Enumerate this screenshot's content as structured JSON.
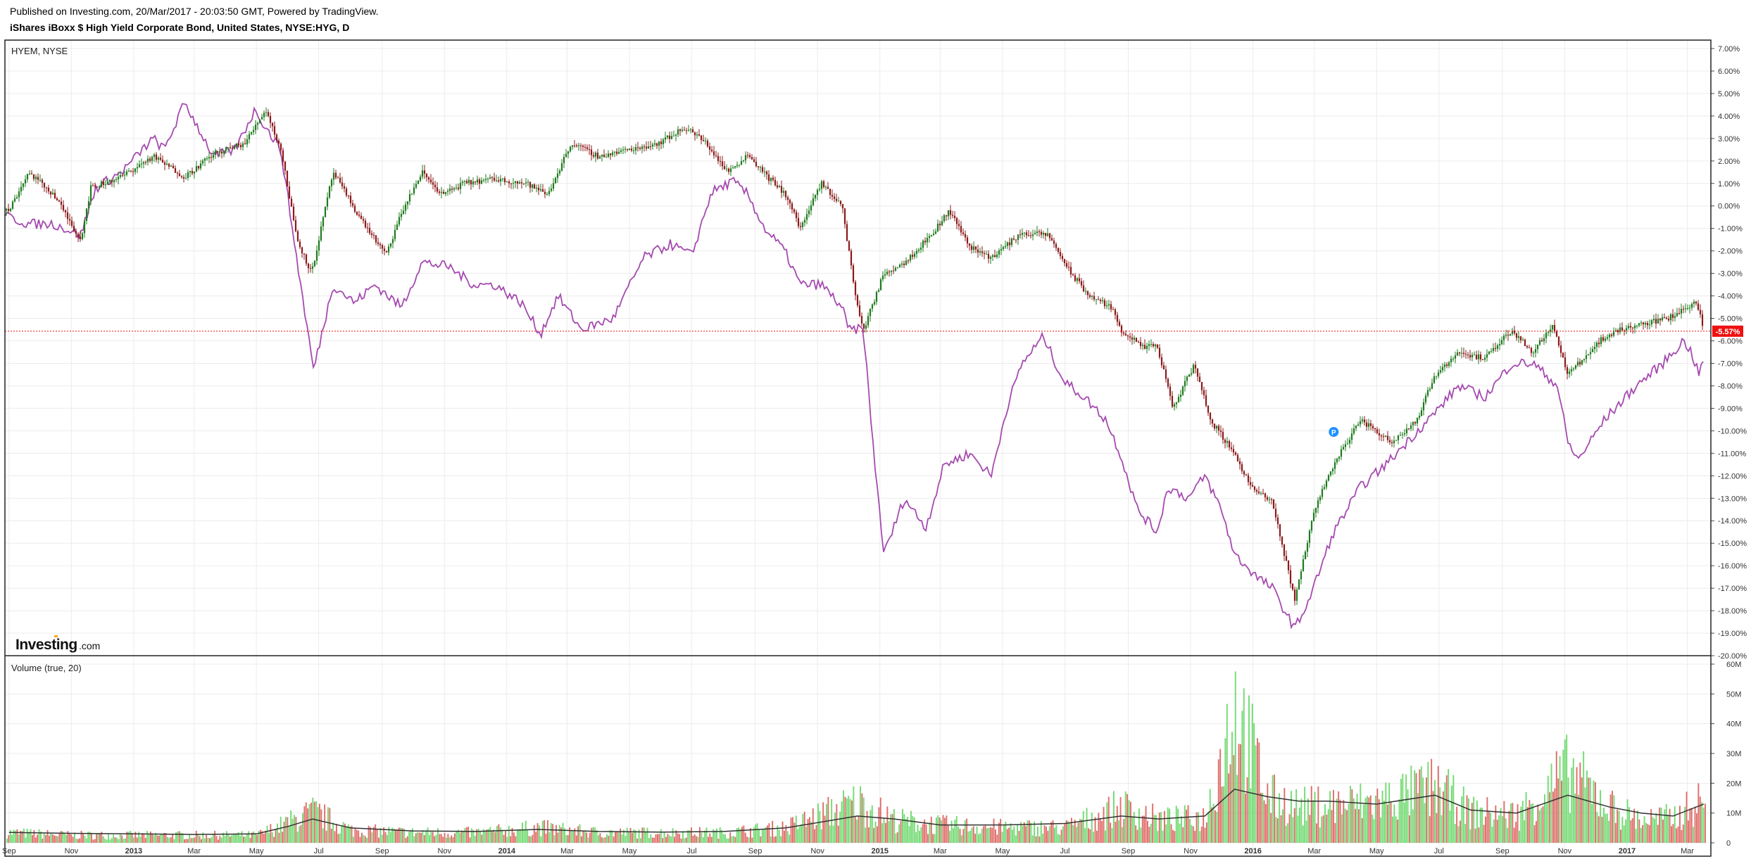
{
  "header": {
    "published": "Published on Investing.com, 20/Mar/2017 - 20:03:50 GMT, Powered by TradingView.",
    "title": "iShares iBoxx $ High Yield Corporate Bond, United States, NYSE:HYG, D"
  },
  "chart_data": {
    "type": "line",
    "main_pane": {
      "legend": "HYEM, NYSE",
      "y_unit": "%",
      "ylim": [
        -20,
        7
      ],
      "y_ticks": [
        "7.00%",
        "6.00%",
        "5.00%",
        "4.00%",
        "3.00%",
        "2.00%",
        "1.00%",
        "0.00%",
        "-1.00%",
        "-2.00%",
        "-3.00%",
        "-4.00%",
        "-5.00%",
        "-6.00%",
        "-7.00%",
        "-8.00%",
        "-9.00%",
        "-10.00%",
        "-11.00%",
        "-12.00%",
        "-13.00%",
        "-14.00%",
        "-15.00%",
        "-16.00%",
        "-17.00%",
        "-18.00%",
        "-19.00%",
        "-20.00%"
      ],
      "current_value_label": "-5.57%",
      "current_value": -5.57,
      "marker_label": "P",
      "marker": {
        "x": "2016-03-20",
        "y": -10.05
      },
      "series": [
        {
          "name": "HYG",
          "style": "candlestick",
          "up_color": "#1e7b1e",
          "down_color": "#8b1a1a",
          "x": [
            "2012-09-01",
            "2012-09-20",
            "2012-10-15",
            "2012-11-10",
            "2012-11-20",
            "2012-12-20",
            "2013-01-20",
            "2013-02-20",
            "2013-03-20",
            "2013-04-20",
            "2013-05-10",
            "2013-05-25",
            "2013-06-10",
            "2013-06-24",
            "2013-07-15",
            "2013-08-10",
            "2013-09-05",
            "2013-09-20",
            "2013-10-10",
            "2013-10-30",
            "2013-11-20",
            "2013-12-20",
            "2014-01-20",
            "2014-02-10",
            "2014-03-05",
            "2014-04-01",
            "2014-04-30",
            "2014-05-30",
            "2014-06-25",
            "2014-07-15",
            "2014-08-05",
            "2014-08-25",
            "2014-09-15",
            "2014-10-01",
            "2014-10-15",
            "2014-11-05",
            "2014-11-25",
            "2014-12-10",
            "2014-12-16",
            "2015-01-05",
            "2015-01-25",
            "2015-02-20",
            "2015-03-10",
            "2015-03-30",
            "2015-04-20",
            "2015-05-20",
            "2015-06-15",
            "2015-07-07",
            "2015-07-25",
            "2015-08-15",
            "2015-08-25",
            "2015-09-15",
            "2015-09-29",
            "2015-10-15",
            "2015-11-05",
            "2015-11-20",
            "2015-12-14",
            "2015-12-30",
            "2016-01-20",
            "2016-02-11",
            "2016-03-01",
            "2016-03-20",
            "2016-04-15",
            "2016-05-15",
            "2016-06-10",
            "2016-06-27",
            "2016-07-20",
            "2016-08-15",
            "2016-09-10",
            "2016-09-30",
            "2016-10-20",
            "2016-11-04",
            "2016-11-15",
            "2016-12-05",
            "2016-12-25",
            "2017-01-20",
            "2017-02-10",
            "2017-03-01",
            "2017-03-10",
            "2017-03-17"
          ],
          "y": [
            -0.2,
            1.5,
            0.5,
            -1.5,
            0.8,
            1.3,
            2.2,
            1.3,
            2.3,
            2.8,
            4.3,
            2.5,
            -1.5,
            -3.0,
            1.5,
            -0.5,
            -2.2,
            -0.3,
            1.5,
            0.5,
            1.0,
            1.2,
            1.0,
            0.5,
            2.8,
            2.2,
            2.5,
            2.8,
            3.5,
            2.8,
            1.5,
            2.3,
            1.2,
            0.5,
            -1.0,
            1.0,
            0.0,
            -4.5,
            -5.5,
            -3.0,
            -2.5,
            -1.3,
            -0.2,
            -1.8,
            -2.3,
            -1.2,
            -1.3,
            -3.0,
            -4.0,
            -4.5,
            -5.5,
            -6.3,
            -6.2,
            -9.0,
            -7.0,
            -9.5,
            -11.0,
            -12.5,
            -13.2,
            -17.5,
            -13.5,
            -11.5,
            -9.5,
            -10.5,
            -9.5,
            -7.5,
            -6.5,
            -6.8,
            -5.5,
            -6.5,
            -5.3,
            -7.5,
            -7.0,
            -6.0,
            -5.5,
            -5.2,
            -5.0,
            -4.5,
            -4.2,
            -5.57
          ]
        },
        {
          "name": "HYEM",
          "style": "line",
          "color": "#a54ab0",
          "x": [
            "2012-09-01",
            "2012-09-20",
            "2012-10-15",
            "2012-11-10",
            "2012-11-25",
            "2012-12-20",
            "2013-01-20",
            "2013-01-31",
            "2013-02-20",
            "2013-03-20",
            "2013-04-10",
            "2013-04-30",
            "2013-05-10",
            "2013-05-25",
            "2013-06-10",
            "2013-06-20",
            "2013-06-26",
            "2013-07-15",
            "2013-08-05",
            "2013-08-25",
            "2013-09-20",
            "2013-10-10",
            "2013-11-05",
            "2013-11-30",
            "2013-12-20",
            "2014-01-15",
            "2014-02-03",
            "2014-02-20",
            "2014-03-15",
            "2014-04-15",
            "2014-05-15",
            "2014-06-10",
            "2014-07-01",
            "2014-07-20",
            "2014-08-10",
            "2014-08-25",
            "2014-09-10",
            "2014-09-30",
            "2014-10-15",
            "2014-11-05",
            "2014-11-25",
            "2014-12-01",
            "2014-12-16",
            "2014-12-25",
            "2015-01-05",
            "2015-01-25",
            "2015-02-15",
            "2015-03-05",
            "2015-03-30",
            "2015-04-20",
            "2015-05-05",
            "2015-05-20",
            "2015-06-10",
            "2015-06-30",
            "2015-07-20",
            "2015-08-10",
            "2015-08-24",
            "2015-09-10",
            "2015-09-29",
            "2015-10-10",
            "2015-10-30",
            "2015-11-15",
            "2015-12-01",
            "2015-12-14",
            "2016-01-05",
            "2016-01-20",
            "2016-02-01",
            "2016-02-11",
            "2016-02-25",
            "2016-03-20",
            "2016-04-15",
            "2016-05-10",
            "2016-06-10",
            "2016-06-27",
            "2016-07-20",
            "2016-08-15",
            "2016-09-10",
            "2016-10-01",
            "2016-10-25",
            "2016-11-04",
            "2016-11-14",
            "2016-12-10",
            "2017-01-10",
            "2017-02-05",
            "2017-02-25",
            "2017-03-05",
            "2017-03-12",
            "2017-03-17"
          ],
          "y": [
            -0.5,
            -0.8,
            -0.8,
            -1.3,
            0.8,
            1.5,
            3.0,
            2.5,
            4.6,
            2.2,
            2.5,
            4.3,
            3.5,
            2.5,
            -2.5,
            -5.5,
            -7.3,
            -3.5,
            -4.3,
            -3.5,
            -4.5,
            -2.5,
            -2.7,
            -3.5,
            -3.5,
            -4.3,
            -5.7,
            -4.0,
            -5.5,
            -5.0,
            -2.3,
            -1.7,
            -2.2,
            0.6,
            1.1,
            0.5,
            -1.0,
            -2.0,
            -3.5,
            -3.5,
            -4.5,
            -5.5,
            -5.5,
            -10.5,
            -15.5,
            -13.0,
            -14.3,
            -11.5,
            -11.0,
            -12.0,
            -9.0,
            -7.0,
            -5.8,
            -7.8,
            -8.5,
            -9.5,
            -11.0,
            -13.5,
            -14.5,
            -12.5,
            -13.0,
            -12.0,
            -13.5,
            -15.5,
            -16.5,
            -17.0,
            -18.0,
            -18.8,
            -17.5,
            -14.5,
            -12.5,
            -11.5,
            -10.0,
            -9.2,
            -8.0,
            -8.5,
            -7.0,
            -7.0,
            -8.0,
            -10.5,
            -11.3,
            -9.5,
            -8.0,
            -7.0,
            -6.0,
            -6.5,
            -7.5,
            -6.8
          ]
        }
      ]
    },
    "volume_pane": {
      "legend": "Volume (true, 20)",
      "y_unit": "M",
      "ylim": [
        0,
        60
      ],
      "y_ticks": [
        "60M",
        "50M",
        "40M",
        "30M",
        "20M",
        "10M",
        "0"
      ],
      "up_color": "#5bd35b",
      "down_color": "#d9534f",
      "ma_color": "#333333",
      "x": [
        "2012-09-01",
        "2012-11-01",
        "2013-01-01",
        "2013-03-01",
        "2013-05-01",
        "2013-06-01",
        "2013-06-25",
        "2013-08-01",
        "2013-10-01",
        "2013-12-01",
        "2014-02-01",
        "2014-04-01",
        "2014-06-01",
        "2014-08-01",
        "2014-10-01",
        "2014-12-10",
        "2015-01-15",
        "2015-03-01",
        "2015-05-01",
        "2015-07-01",
        "2015-08-25",
        "2015-10-01",
        "2015-11-15",
        "2015-12-14",
        "2016-01-15",
        "2016-02-15",
        "2016-03-15",
        "2016-05-01",
        "2016-06-27",
        "2016-08-01",
        "2016-09-15",
        "2016-11-04",
        "2016-12-15",
        "2017-01-15",
        "2017-02-15",
        "2017-03-17"
      ],
      "volume": [
        4,
        3,
        3,
        3,
        3,
        8,
        12,
        5,
        4,
        4,
        6,
        4,
        4,
        4,
        6,
        16,
        9,
        7,
        6,
        6,
        14,
        9,
        10,
        55,
        18,
        14,
        15,
        16,
        22,
        12,
        11,
        28,
        14,
        9,
        10,
        17
      ],
      "ma": [
        3.5,
        3.2,
        3.0,
        2.8,
        3.0,
        5.5,
        8.0,
        5.0,
        4.0,
        3.8,
        4.5,
        3.8,
        3.6,
        3.8,
        5.0,
        9.0,
        8.0,
        6.0,
        6.0,
        6.5,
        9.0,
        8.0,
        9.0,
        18.0,
        15.5,
        14.0,
        14.0,
        13.0,
        16.0,
        11.0,
        10.0,
        16.0,
        12.0,
        10.0,
        9.0,
        13.0
      ]
    },
    "x_axis": {
      "labels": [
        "Sep",
        "Nov",
        "2013",
        "Mar",
        "May",
        "Jul",
        "Sep",
        "Nov",
        "2014",
        "Mar",
        "May",
        "Jul",
        "Sep",
        "Nov",
        "2015",
        "Mar",
        "May",
        "Jul",
        "Sep",
        "Nov",
        "2016",
        "Mar",
        "May",
        "Jul",
        "Sep",
        "Nov",
        "2017",
        "Mar"
      ],
      "dates": [
        "2012-09-01",
        "2012-11-01",
        "2013-01-01",
        "2013-03-01",
        "2013-05-01",
        "2013-07-01",
        "2013-09-01",
        "2013-11-01",
        "2014-01-01",
        "2014-03-01",
        "2014-05-01",
        "2014-07-01",
        "2014-09-01",
        "2014-11-01",
        "2015-01-01",
        "2015-03-01",
        "2015-05-01",
        "2015-07-01",
        "2015-09-01",
        "2015-11-01",
        "2016-01-01",
        "2016-03-01",
        "2016-05-01",
        "2016-07-01",
        "2016-09-01",
        "2016-11-01",
        "2017-01-01",
        "2017-03-01"
      ],
      "bold": [
        "2013",
        "2014",
        "2015",
        "2016",
        "2017"
      ]
    },
    "grid": true,
    "current_line_color": "#ee1111"
  },
  "logo": {
    "main": "Investing",
    "suffix": ".com"
  }
}
